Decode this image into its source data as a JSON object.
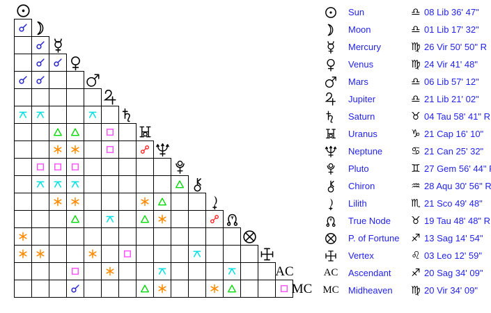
{
  "colors": {
    "background": "#ffffff",
    "grid_line": "#000000",
    "glyph_black": "#000000",
    "text_blue": "#2222ee",
    "aspects": {
      "conjunction": "#2828cc",
      "sextile": "#ff8a00",
      "square": "#ff55ff",
      "trine": "#00d800",
      "opposition": "#ff1a1a",
      "quincunx": "#00e0e0"
    }
  },
  "chart_data": {
    "type": "table",
    "description_visible": "",
    "planets_order": [
      "sun",
      "moon",
      "mercury",
      "venus",
      "mars",
      "jupiter",
      "saturn",
      "uranus",
      "neptune",
      "pluto",
      "chiron",
      "lilith",
      "true-node",
      "fortune",
      "vertex",
      "ascendant",
      "midheaven"
    ],
    "axis_labels": {
      "ascendant": "AC",
      "midheaven": "MC"
    },
    "aspects": [
      {
        "row": "moon",
        "col": "sun",
        "type": "conjunction"
      },
      {
        "row": "mercury",
        "col": "moon",
        "type": "conjunction"
      },
      {
        "row": "venus",
        "col": "moon",
        "type": "conjunction"
      },
      {
        "row": "venus",
        "col": "mercury",
        "type": "conjunction"
      },
      {
        "row": "mars",
        "col": "sun",
        "type": "conjunction"
      },
      {
        "row": "mars",
        "col": "moon",
        "type": "conjunction"
      },
      {
        "row": "saturn",
        "col": "sun",
        "type": "quincunx"
      },
      {
        "row": "saturn",
        "col": "moon",
        "type": "quincunx"
      },
      {
        "row": "saturn",
        "col": "mars",
        "type": "quincunx"
      },
      {
        "row": "uranus",
        "col": "mercury",
        "type": "trine"
      },
      {
        "row": "uranus",
        "col": "venus",
        "type": "trine"
      },
      {
        "row": "uranus",
        "col": "jupiter",
        "type": "square"
      },
      {
        "row": "neptune",
        "col": "mercury",
        "type": "sextile"
      },
      {
        "row": "neptune",
        "col": "venus",
        "type": "sextile"
      },
      {
        "row": "neptune",
        "col": "jupiter",
        "type": "square"
      },
      {
        "row": "neptune",
        "col": "uranus",
        "type": "opposition"
      },
      {
        "row": "pluto",
        "col": "moon",
        "type": "square"
      },
      {
        "row": "pluto",
        "col": "mercury",
        "type": "square"
      },
      {
        "row": "pluto",
        "col": "venus",
        "type": "square"
      },
      {
        "row": "chiron",
        "col": "moon",
        "type": "quincunx"
      },
      {
        "row": "chiron",
        "col": "mercury",
        "type": "quincunx"
      },
      {
        "row": "chiron",
        "col": "venus",
        "type": "quincunx"
      },
      {
        "row": "chiron",
        "col": "pluto",
        "type": "trine"
      },
      {
        "row": "lilith",
        "col": "mercury",
        "type": "sextile"
      },
      {
        "row": "lilith",
        "col": "venus",
        "type": "sextile"
      },
      {
        "row": "lilith",
        "col": "uranus",
        "type": "sextile"
      },
      {
        "row": "lilith",
        "col": "neptune",
        "type": "trine"
      },
      {
        "row": "true-node",
        "col": "venus",
        "type": "trine"
      },
      {
        "row": "true-node",
        "col": "jupiter",
        "type": "quincunx"
      },
      {
        "row": "true-node",
        "col": "uranus",
        "type": "trine"
      },
      {
        "row": "true-node",
        "col": "neptune",
        "type": "sextile"
      },
      {
        "row": "true-node",
        "col": "lilith",
        "type": "opposition"
      },
      {
        "row": "fortune",
        "col": "sun",
        "type": "sextile"
      },
      {
        "row": "vertex",
        "col": "sun",
        "type": "sextile"
      },
      {
        "row": "vertex",
        "col": "moon",
        "type": "sextile"
      },
      {
        "row": "vertex",
        "col": "mars",
        "type": "sextile"
      },
      {
        "row": "vertex",
        "col": "saturn",
        "type": "square"
      },
      {
        "row": "vertex",
        "col": "chiron",
        "type": "quincunx"
      },
      {
        "row": "ascendant",
        "col": "venus",
        "type": "square"
      },
      {
        "row": "ascendant",
        "col": "jupiter",
        "type": "sextile"
      },
      {
        "row": "ascendant",
        "col": "neptune",
        "type": "quincunx"
      },
      {
        "row": "ascendant",
        "col": "true-node",
        "type": "quincunx"
      },
      {
        "row": "midheaven",
        "col": "venus",
        "type": "conjunction"
      },
      {
        "row": "midheaven",
        "col": "uranus",
        "type": "trine"
      },
      {
        "row": "midheaven",
        "col": "neptune",
        "type": "sextile"
      },
      {
        "row": "midheaven",
        "col": "lilith",
        "type": "sextile"
      },
      {
        "row": "midheaven",
        "col": "true-node",
        "type": "trine"
      },
      {
        "row": "midheaven",
        "col": "ascendant",
        "type": "square"
      }
    ],
    "positions": [
      {
        "planet": "sun",
        "name": "Sun",
        "sign": "libra",
        "position": "08 Lib 36' 47\""
      },
      {
        "planet": "moon",
        "name": "Moon",
        "sign": "libra",
        "position": "01 Lib 17' 32\""
      },
      {
        "planet": "mercury",
        "name": "Mercury",
        "sign": "virgo",
        "position": "26 Vir 50' 50\" R"
      },
      {
        "planet": "venus",
        "name": "Venus",
        "sign": "virgo",
        "position": "24 Vir 41' 48\""
      },
      {
        "planet": "mars",
        "name": "Mars",
        "sign": "libra",
        "position": "06 Lib 57' 12\""
      },
      {
        "planet": "jupiter",
        "name": "Jupiter",
        "sign": "libra",
        "position": "21 Lib 21' 02\""
      },
      {
        "planet": "saturn",
        "name": "Saturn",
        "sign": "taurus",
        "position": "04 Tau 58' 41\" R"
      },
      {
        "planet": "uranus",
        "name": "Uranus",
        "sign": "capricorn",
        "position": "21 Cap 16' 10\""
      },
      {
        "planet": "neptune",
        "name": "Neptune",
        "sign": "cancer",
        "position": "21 Can 25' 32\""
      },
      {
        "planet": "pluto",
        "name": "Pluto",
        "sign": "gemini",
        "position": "27 Gem 56' 44\" R"
      },
      {
        "planet": "chiron",
        "name": "Chiron",
        "sign": "aquarius",
        "position": "28 Aqu 30' 56\" R"
      },
      {
        "planet": "lilith",
        "name": "Lilith",
        "sign": "scorpio",
        "position": "21 Sco 49' 48\""
      },
      {
        "planet": "true-node",
        "name": "True Node",
        "sign": "taurus",
        "position": "19 Tau 48' 48\" R"
      },
      {
        "planet": "fortune",
        "name": "P. of Fortune",
        "sign": "sagittarius",
        "position": "13 Sag 14' 54\""
      },
      {
        "planet": "vertex",
        "name": "Vertex",
        "sign": "leo",
        "position": "03 Leo 12' 59\""
      },
      {
        "planet": "ascendant",
        "name": "Ascendant",
        "axis_text": "AC",
        "sign": "sagittarius",
        "position": "20 Sag 34' 09\""
      },
      {
        "planet": "midheaven",
        "name": "Midheaven",
        "axis_text": "MC",
        "sign": "virgo",
        "position": "20 Vir 34' 09\""
      }
    ]
  }
}
